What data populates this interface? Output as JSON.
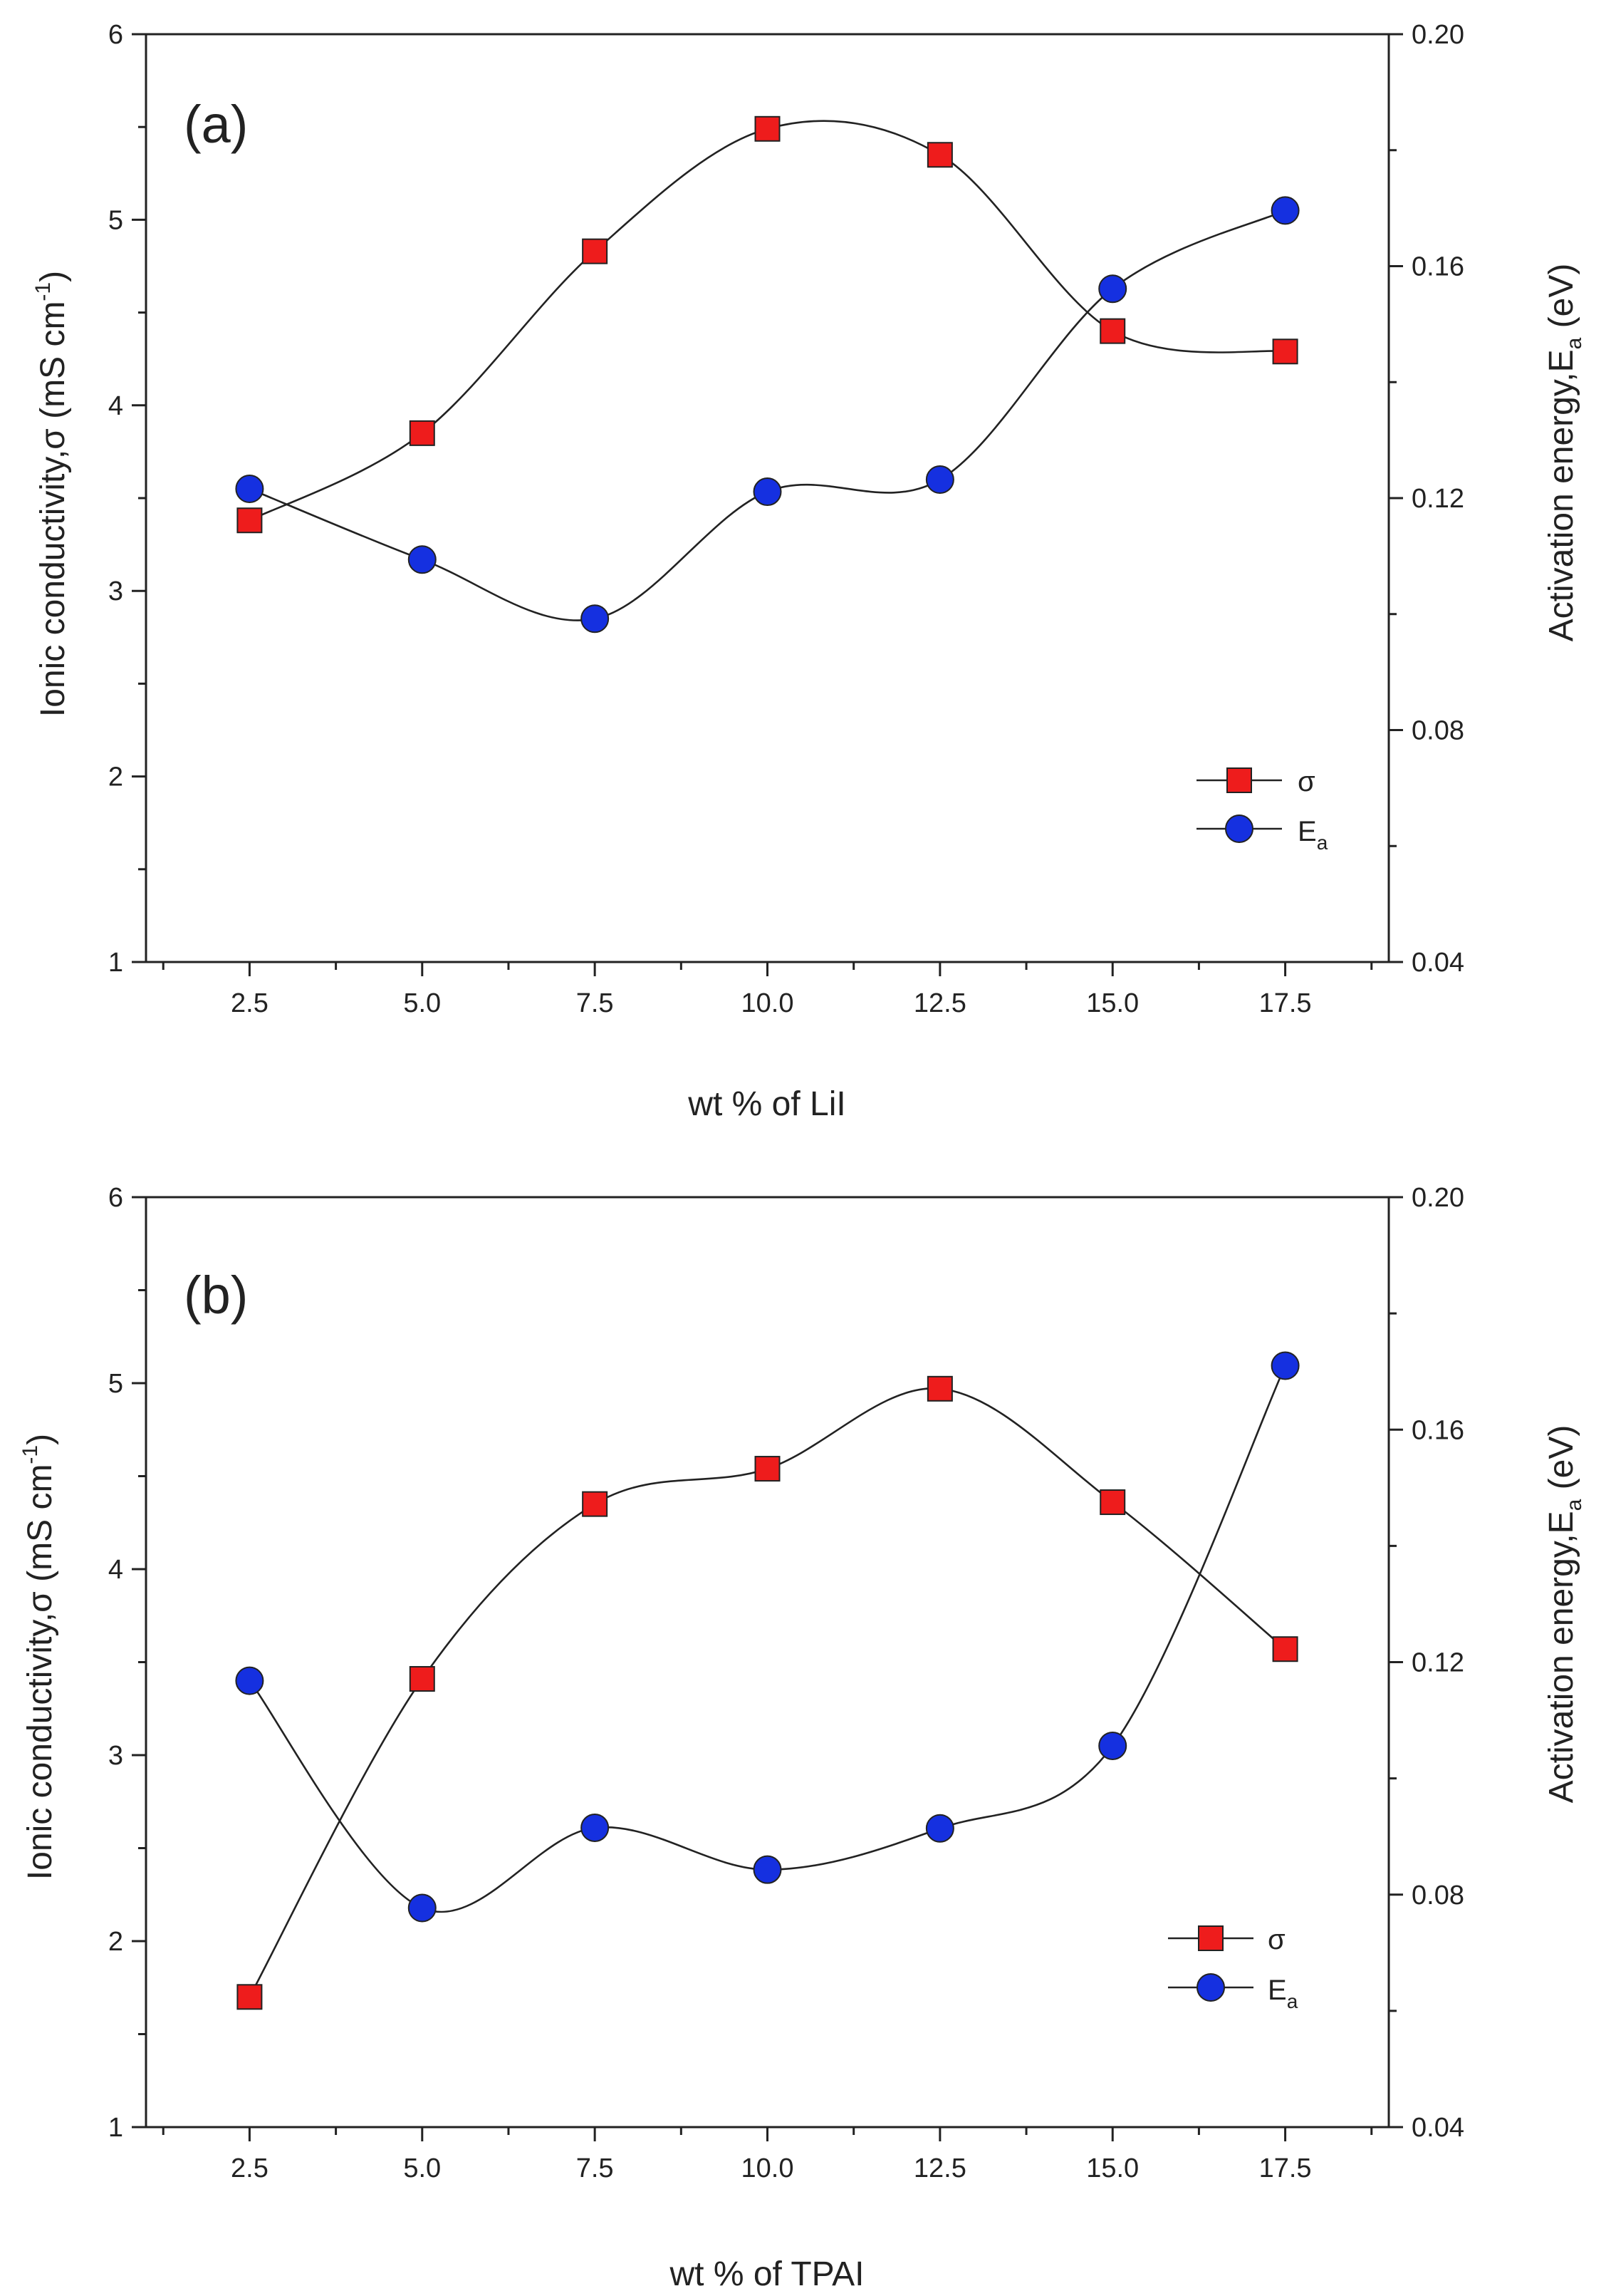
{
  "chart_data": [
    {
      "type": "line",
      "panel_label": "(a)",
      "xlabel": "wt % of LiI",
      "ylabel": "Ionic conductivity,σ (mS cm",
      "ylabel_sup": "-1",
      "ylabel_end": ")",
      "y2label": "Activation energy,E",
      "y2label_sub": "a",
      "y2label_end": " (eV)",
      "x": [
        2.5,
        5.0,
        7.5,
        10.0,
        12.5,
        15.0,
        17.5
      ],
      "x_tick_labels": [
        "2.5",
        "5.0",
        "7.5",
        "10.0",
        "12.5",
        "15.0",
        "17.5"
      ],
      "xlim": [
        1.0,
        19.0
      ],
      "ylim": [
        1,
        6
      ],
      "y_tick_labels": [
        "1",
        "2",
        "3",
        "4",
        "5",
        "6"
      ],
      "y2lim": [
        0.04,
        0.2
      ],
      "y2_tick_labels": [
        "0.04",
        "0.08",
        "0.12",
        "0.16",
        "0.20"
      ],
      "series": [
        {
          "name": "σ",
          "axis": "left",
          "marker": "square",
          "color": "#ee1c1c",
          "values": [
            3.38,
            3.85,
            4.83,
            5.49,
            5.35,
            4.4,
            4.29
          ]
        },
        {
          "name": "E",
          "name_sub": "a",
          "axis": "right",
          "marker": "circle",
          "color": "#1530e0",
          "values": [
            0.1216,
            0.1094,
            0.0992,
            0.1211,
            0.1232,
            0.1561,
            0.1696
          ]
        }
      ],
      "legend_position": "lower-right"
    },
    {
      "type": "line",
      "panel_label": "(b)",
      "xlabel": "wt % of TPAI",
      "ylabel": "Ionic conductivity,σ (mS cm",
      "ylabel_sup": "-1",
      "ylabel_end": ")",
      "y2label": "Activation energy,E",
      "y2label_sub": "a",
      "y2label_end": " (eV)",
      "x": [
        2.5,
        5.0,
        7.5,
        10.0,
        12.5,
        15.0,
        17.5
      ],
      "x_tick_labels": [
        "2.5",
        "5.0",
        "7.5",
        "10.0",
        "12.5",
        "15.0",
        "17.5"
      ],
      "xlim": [
        1.0,
        19.0
      ],
      "ylim": [
        1,
        6
      ],
      "y_tick_labels": [
        "1",
        "2",
        "3",
        "4",
        "5",
        "6"
      ],
      "y2lim": [
        0.04,
        0.2
      ],
      "y2_tick_labels": [
        "0.04",
        "0.08",
        "0.12",
        "0.16",
        "0.20"
      ],
      "series": [
        {
          "name": "σ",
          "axis": "left",
          "marker": "square",
          "color": "#ee1c1c",
          "values": [
            1.7,
            3.41,
            4.35,
            4.54,
            4.97,
            4.36,
            3.57
          ]
        },
        {
          "name": "E",
          "name_sub": "a",
          "axis": "right",
          "marker": "circle",
          "color": "#1530e0",
          "values": [
            0.1168,
            0.0777,
            0.0915,
            0.0843,
            0.0914,
            0.1056,
            0.171
          ]
        }
      ],
      "legend_position": "lower-right"
    }
  ]
}
